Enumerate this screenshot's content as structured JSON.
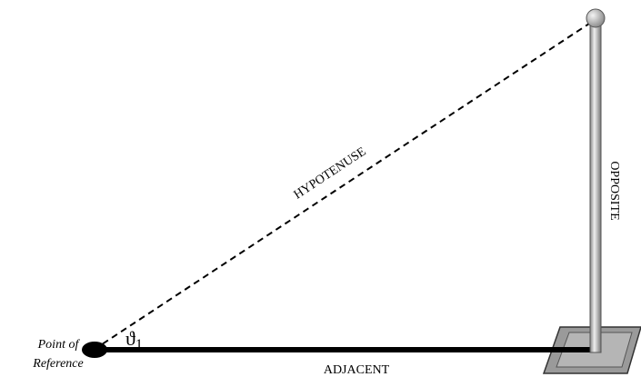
{
  "point": {
    "lines": [
      "Point of",
      "Reference"
    ]
  },
  "angle": {
    "symbol": "ϑ",
    "subscript": "1"
  },
  "hypotenuse": {
    "label": "HYPOTENUSE"
  },
  "opposite": {
    "label": "OPPOSITE"
  },
  "adjacent": {
    "label": "ADJACENT"
  }
}
